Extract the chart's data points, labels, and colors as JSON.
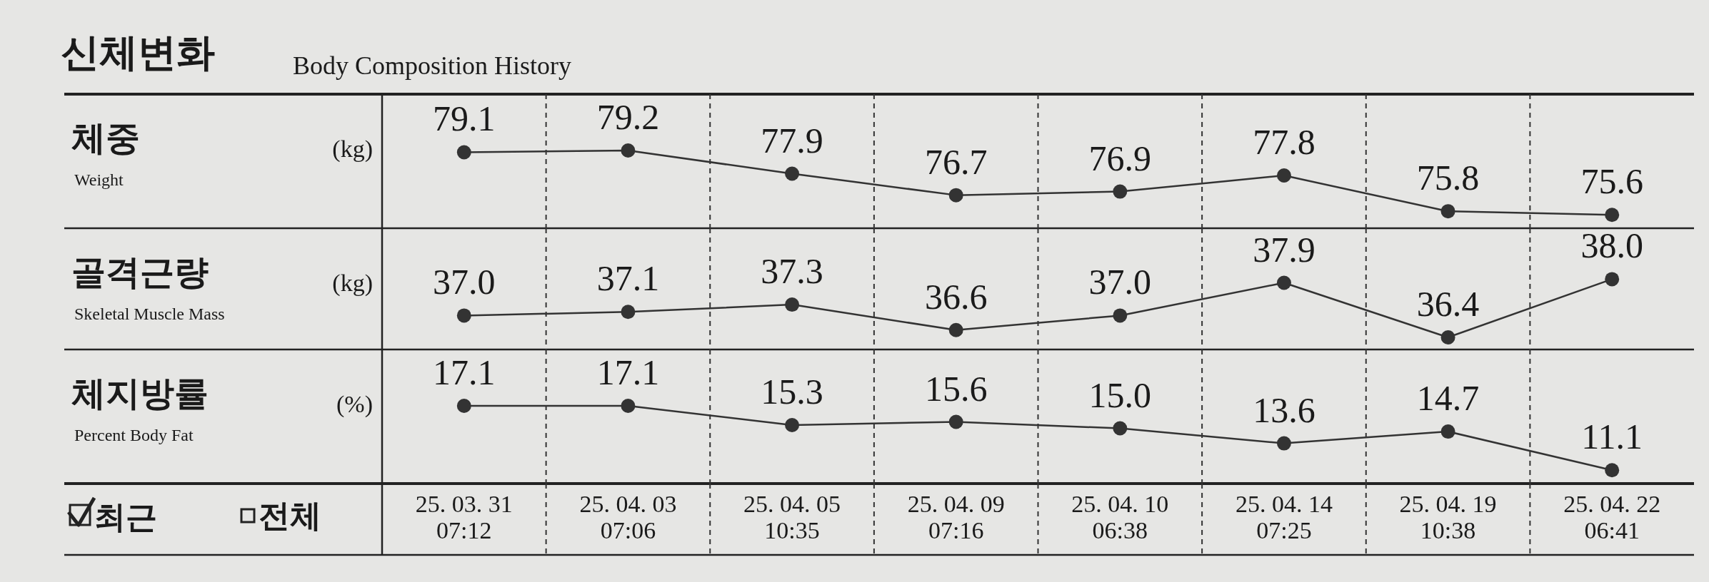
{
  "chart_data": [
    {
      "type": "line",
      "title": "신체변화",
      "subtitle": "Body Composition History",
      "ylabel": "체중",
      "annotations": [
        "(kg)",
        "Weight"
      ],
      "categories": [
        null,
        null,
        null,
        null,
        null,
        null,
        null,
        null
      ],
      "values": [
        79.1,
        79.2,
        77.9,
        76.7,
        76.9,
        77.8,
        75.8,
        75.6
      ],
      "value_labels": [
        "79.1",
        "79.2",
        "77.9",
        "76.7",
        "76.9",
        "77.8",
        "75.8",
        "75.6"
      ],
      "color": "#333333",
      "marker": "circle",
      "grid": "x"
    },
    {
      "type": "line",
      "ylabel": "골격근량",
      "annotations": [
        "(kg)",
        "Skeletal Muscle Mass"
      ],
      "categories": [
        null,
        null,
        null,
        null,
        null,
        null,
        null,
        null
      ],
      "values": [
        37.0,
        37.1,
        37.3,
        36.6,
        37.0,
        37.9,
        36.4,
        38.0
      ],
      "value_labels": [
        "37.0",
        "37.1",
        "37.3",
        "36.6",
        "37.0",
        "37.9",
        "36.4",
        "38.0"
      ],
      "color": "#333333",
      "marker": "circle",
      "grid": "x"
    },
    {
      "type": "line",
      "ylabel": "체지방률",
      "annotations": [
        "(%)",
        "Percent Body Fat",
        "최근",
        "전체"
      ],
      "categories": [
        "25. 03. 31\n07:12",
        "25. 04. 03\n07:06",
        "25. 04. 05\n10:35",
        "25. 04. 09\n07:16",
        "25. 04. 10\n06:38",
        "25. 04. 14\n07:25",
        "25. 04. 19\n10:38",
        "25. 04. 22\n06:41"
      ],
      "values": [
        17.1,
        17.1,
        15.3,
        15.6,
        15.0,
        13.6,
        14.7,
        11.1
      ],
      "value_labels": [
        "17.1",
        "17.1",
        "15.3",
        "15.6",
        "15.0",
        "13.6",
        "14.7",
        "11.1"
      ],
      "color": "#333333",
      "marker": "circle",
      "grid": "x"
    }
  ]
}
